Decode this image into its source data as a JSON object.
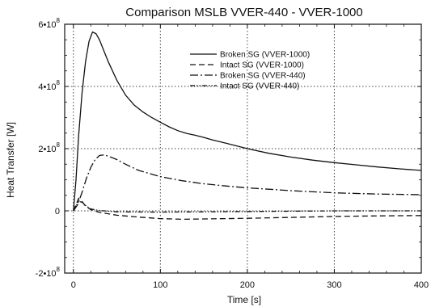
{
  "chart_data": {
    "type": "line",
    "title": "Comparison MSLB VVER-440 - VVER-1000",
    "xlabel": "Time [s]",
    "ylabel": "Heat Transfer [W]",
    "xlim": [
      -10,
      400
    ],
    "ylim": [
      -200000000,
      600000000
    ],
    "x_ticks": [
      0,
      100,
      200,
      300,
      400
    ],
    "x_tick_labels": [
      "0",
      "100",
      "200",
      "300",
      "400"
    ],
    "y_ticks": [
      -200000000,
      0,
      200000000,
      400000000,
      600000000
    ],
    "y_tick_labels": [
      "-2•10",
      "0",
      "2•10",
      "4•10",
      "6•10"
    ],
    "y_tick_exponents": [
      "8",
      "",
      "8",
      "8",
      "8"
    ],
    "grid": true,
    "legend_position": "top-center",
    "series": [
      {
        "name": "Broken SG (VVER-1000)",
        "line_style": "solid",
        "x": [
          0,
          3,
          6,
          10,
          14,
          18,
          22,
          26,
          30,
          35,
          40,
          50,
          60,
          70,
          80,
          90,
          100,
          110,
          120,
          130,
          140,
          150,
          160,
          175,
          200,
          225,
          250,
          275,
          300,
          325,
          350,
          375,
          400
        ],
        "y": [
          0,
          100000000,
          240000000,
          380000000,
          480000000,
          545000000,
          575000000,
          570000000,
          550000000,
          515000000,
          480000000,
          420000000,
          372000000,
          340000000,
          318000000,
          300000000,
          285000000,
          270000000,
          258000000,
          249000000,
          243000000,
          236000000,
          228000000,
          218000000,
          200000000,
          185000000,
          173000000,
          163000000,
          155000000,
          148000000,
          141000000,
          135000000,
          130000000
        ]
      },
      {
        "name": "Intact SG (VVER-1000)",
        "line_style": "dashed",
        "x": [
          0,
          3,
          6,
          10,
          14,
          20,
          30,
          50,
          75,
          100,
          125,
          150,
          175,
          200,
          250,
          300,
          350,
          400
        ],
        "y": [
          0,
          20000000,
          40000000,
          30000000,
          15000000,
          4000000,
          -5000000,
          -14000000,
          -20000000,
          -25000000,
          -27000000,
          -26000000,
          -25000000,
          -24000000,
          -21000000,
          -18000000,
          -16000000,
          -15000000
        ]
      },
      {
        "name": "Broken SG (VVER-440)",
        "line_style": "dashdot",
        "x": [
          0,
          5,
          10,
          15,
          20,
          25,
          30,
          35,
          40,
          50,
          60,
          75,
          100,
          125,
          150,
          175,
          200,
          250,
          300,
          350,
          400
        ],
        "y": [
          0,
          20000000,
          60000000,
          105000000,
          140000000,
          165000000,
          178000000,
          180000000,
          176000000,
          165000000,
          150000000,
          130000000,
          110000000,
          97000000,
          87000000,
          80000000,
          74000000,
          65000000,
          58000000,
          54000000,
          52000000
        ]
      },
      {
        "name": "Intact SG (VVER-440)",
        "line_style": "dashdotdot",
        "x": [
          0,
          3,
          6,
          10,
          15,
          20,
          30,
          50,
          100,
          150,
          200,
          250,
          300,
          350,
          400
        ],
        "y": [
          0,
          15000000,
          30000000,
          28000000,
          15000000,
          6000000,
          1000000,
          -3000000,
          -4000000,
          -3000000,
          -2000000,
          -1000000,
          0,
          0,
          0
        ]
      }
    ]
  }
}
